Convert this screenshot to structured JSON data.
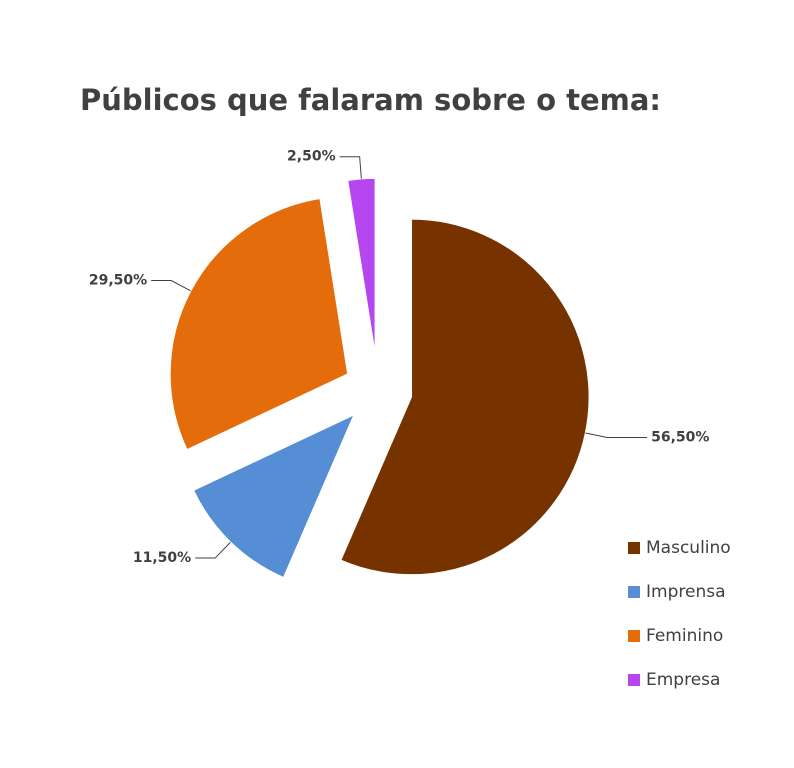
{
  "chart_data": {
    "type": "pie",
    "title": "Públicos que falaram sobre o tema:",
    "categories": [
      "Masculino",
      "Imprensa",
      "Feminino",
      "Empresa"
    ],
    "values": [
      56.5,
      11.5,
      29.5,
      2.5
    ],
    "value_labels": [
      "56,50%",
      "11,50%",
      "29,50%",
      "2,50%"
    ],
    "colors": [
      "#763300",
      "#558ed5",
      "#e46c0a",
      "#b646f0"
    ],
    "legend": "right",
    "exploded": true
  }
}
